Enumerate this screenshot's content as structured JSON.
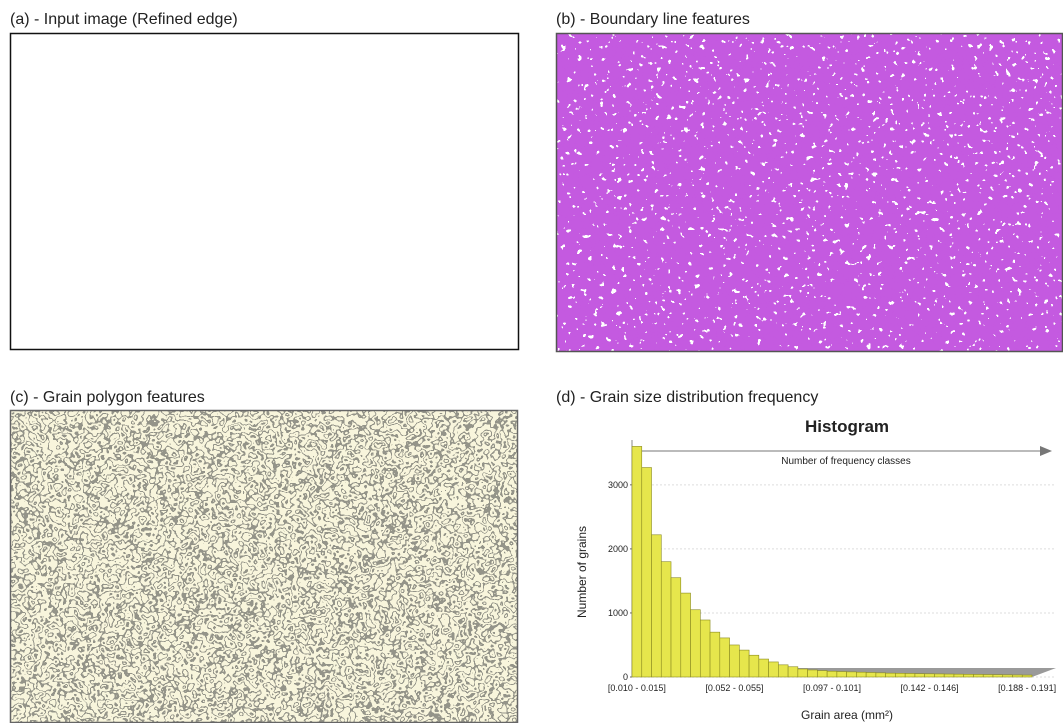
{
  "panels": [
    {
      "title": "(a) - Input image (Refined edge)"
    },
    {
      "title": "(b) - Boundary line features"
    },
    {
      "title": "(c) - Grain polygon features"
    },
    {
      "title": "(d) - Grain size distribution frequency"
    }
  ],
  "chart_data": {
    "type": "histogram",
    "title": "Histogram",
    "annotation": "Number of frequency classes",
    "x_label": "Grain area (mm²)",
    "y_label": "Number of grains",
    "categories": [
      "[0.010 - 0.015]",
      null,
      null,
      null,
      null,
      null,
      null,
      null,
      null,
      null,
      "[0.052 - 0.055]",
      null,
      null,
      null,
      null,
      null,
      null,
      null,
      null,
      null,
      "[0.097 - 0.101]",
      null,
      null,
      null,
      null,
      null,
      null,
      null,
      null,
      null,
      "[0.142 - 0.146]",
      null,
      null,
      null,
      null,
      null,
      null,
      null,
      null,
      null,
      "[0.188 - 0.191]"
    ],
    "values": [
      3600,
      3270,
      2220,
      1800,
      1550,
      1310,
      1050,
      890,
      700,
      610,
      500,
      420,
      340,
      280,
      235,
      190,
      160,
      125,
      110,
      100,
      90,
      85,
      80,
      75,
      70,
      65,
      60,
      58,
      55,
      52,
      50,
      48,
      46,
      44,
      42,
      40,
      38,
      36,
      34,
      32,
      30
    ],
    "color": "#e6e64c",
    "ylim": [
      0,
      3700
    ],
    "yticks": [
      0,
      1000,
      2000,
      3000
    ],
    "grid": true
  }
}
